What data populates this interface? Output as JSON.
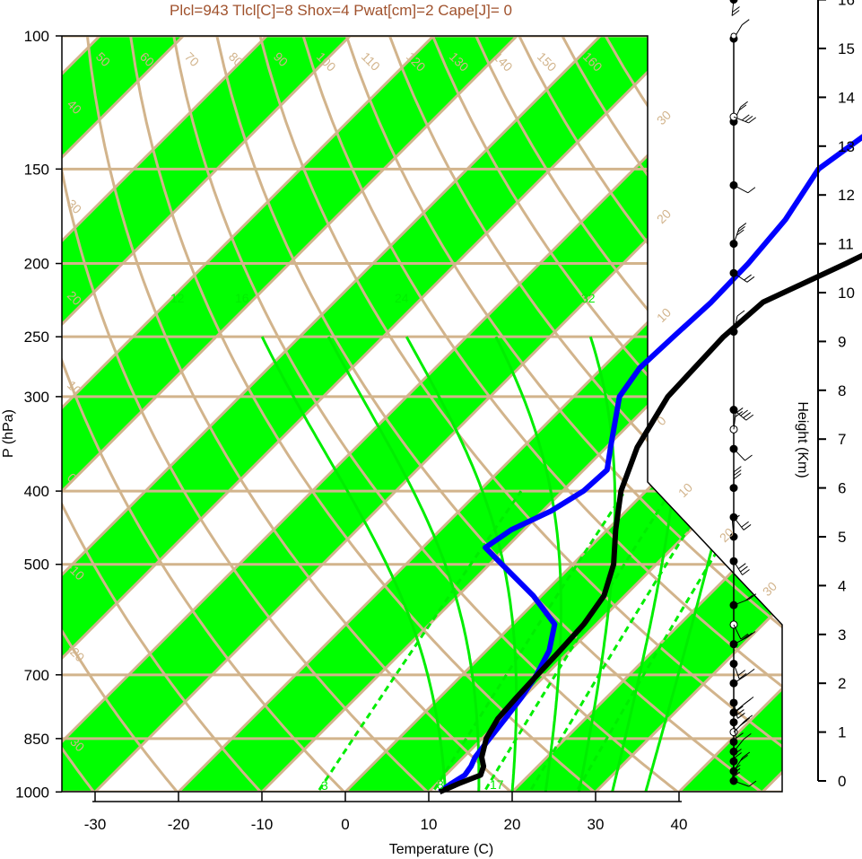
{
  "colors": {
    "tan": "#d2b48c",
    "band": "#00ff00",
    "mixing": "#00ee00",
    "title": "#a0522d",
    "temperature": "#000000",
    "dewpoint": "#0000ff"
  },
  "chart_data": {
    "type": "line",
    "title": "Plcl=943 Tlcl[C]=8 Shox=4 Pwat[cm]=2 Cape[J]= 0",
    "xlabel": "Temperature (C)",
    "ylabel": "P (hPa)",
    "height_label": "Height (Km)",
    "x_ticks": [
      "-30",
      "-20",
      "-10",
      "0",
      "10",
      "20",
      "30",
      "40"
    ],
    "pressure_ticks": [
      "100",
      "150",
      "200",
      "250",
      "300",
      "400",
      "500",
      "700",
      "850",
      "1000"
    ],
    "height_ticks": [
      "0",
      "1",
      "2",
      "3",
      "4",
      "5",
      "6",
      "7",
      "8",
      "9",
      "10",
      "11",
      "12",
      "13",
      "14",
      "15",
      "16"
    ],
    "isotherm_labels": [
      "-30",
      "-20",
      "-10",
      "0",
      "10",
      "20",
      "30"
    ],
    "top_labels": [
      "50",
      "60",
      "70",
      "80",
      "90",
      "100",
      "110",
      "120",
      "130",
      "140",
      "150",
      "160"
    ],
    "left_labels": [
      "40",
      "30",
      "20",
      "10",
      "0",
      "-10",
      "-20",
      "-30"
    ],
    "mixing_labels": [
      "12",
      "16",
      "24",
      "32",
      "3",
      "8",
      "17"
    ],
    "temperature": {
      "name": "",
      "pressure": [
        1000,
        975,
        950,
        925,
        900,
        850,
        800,
        750,
        700,
        650,
        600,
        550,
        500,
        450,
        400,
        350,
        300,
        250,
        225,
        200,
        175,
        150,
        140,
        130,
        120,
        110,
        105
      ],
      "values": [
        11.3,
        12.6,
        14.2,
        13.5,
        12.2,
        10.5,
        9.5,
        9.2,
        9.0,
        8.8,
        8.5,
        7.5,
        4.9,
        1.0,
        -3.0,
        -6.3,
        -8.7,
        -9.2,
        -8.6,
        -3.3,
        2.2,
        7.8,
        10.5,
        13.5,
        15.0,
        15.5,
        17.5
      ]
    },
    "dewpoint": {
      "name": "",
      "pressure": [
        1000,
        975,
        950,
        925,
        900,
        850,
        800,
        750,
        700,
        650,
        600,
        550,
        500,
        475,
        450,
        425,
        400,
        375,
        350,
        300,
        275,
        250,
        225,
        200,
        175,
        150,
        130,
        110,
        105
      ],
      "values": [
        11.3,
        11.7,
        12.3,
        12.0,
        11.4,
        10.9,
        10.4,
        9.8,
        8.9,
        7.5,
        5.0,
        -1.0,
        -8.5,
        -12.5,
        -11.5,
        -9.0,
        -7.5,
        -7.2,
        -9.5,
        -14.5,
        -15.5,
        -15.2,
        -14.8,
        -15.0,
        -15.8,
        -17.9,
        -15.8,
        -7.5,
        -6.8
      ]
    },
    "wind_profile": {
      "heights_km": [
        0.0,
        0.2,
        0.4,
        0.6,
        0.8,
        1.0,
        1.2,
        1.4,
        1.6,
        2.0,
        2.4,
        2.8,
        3.2,
        3.6,
        4.5,
        5.0,
        5.4,
        6.0,
        6.8,
        7.2,
        7.6,
        9.2,
        10.4,
        11.0,
        12.2,
        13.5,
        13.6,
        15.2,
        16.0
      ]
    },
    "ylim": [
      1050,
      100
    ],
    "xlim": [
      -33.9,
      52.3
    ],
    "grid": true,
    "legend": "none"
  }
}
